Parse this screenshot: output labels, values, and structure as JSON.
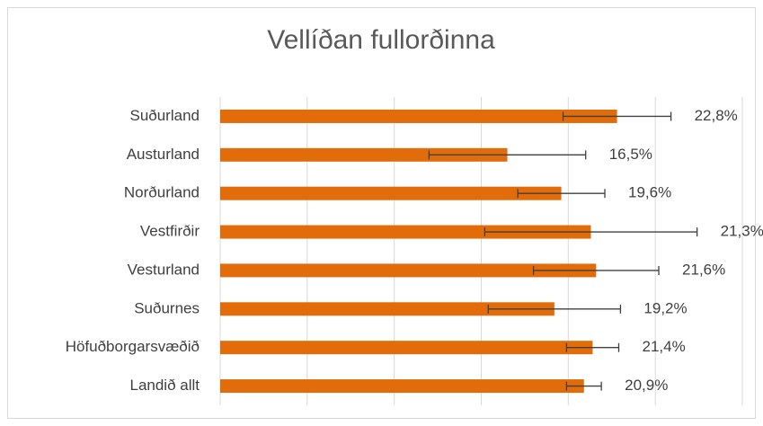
{
  "chart_data": {
    "type": "bar",
    "orientation": "horizontal",
    "title": "Vellíðan fullorðinna",
    "categories": [
      "Suðurland",
      "Austurland",
      "Norðurland",
      "Vestfirðir",
      "Vesturland",
      "Suðurnes",
      "Höfuðborgarsvæðið",
      "Landið allt"
    ],
    "values": [
      22.8,
      16.5,
      19.6,
      21.3,
      21.6,
      19.2,
      21.4,
      20.9
    ],
    "value_labels": [
      "22,8%",
      "16,5%",
      "19,6%",
      "21,3%",
      "21,6%",
      "19,2%",
      "21,4%",
      "20,9%"
    ],
    "errors": [
      3.1,
      4.5,
      2.5,
      6.1,
      3.6,
      3.8,
      1.5,
      1.0
    ],
    "color": "#e36c0a",
    "error_color": "#404040",
    "xlim": [
      0,
      30
    ],
    "xticks": [
      0,
      5,
      10,
      15,
      20,
      25,
      30
    ],
    "grid": true
  }
}
